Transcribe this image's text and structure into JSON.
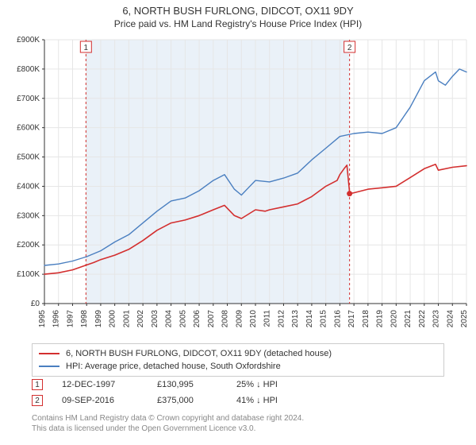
{
  "title": "6, NORTH BUSH FURLONG, DIDCOT, OX11 9DY",
  "subtitle": "Price paid vs. HM Land Registry's House Price Index (HPI)",
  "chart": {
    "type": "line",
    "background_color": "#ffffff",
    "grid_color": "#e6e6e6",
    "shaded_band_color": "#eaf1f8",
    "axis_color": "#333333",
    "x_years": [
      1995,
      1996,
      1997,
      1998,
      1999,
      2000,
      2001,
      2002,
      2003,
      2004,
      2005,
      2006,
      2007,
      2008,
      2009,
      2010,
      2011,
      2012,
      2013,
      2014,
      2015,
      2016,
      2017,
      2018,
      2019,
      2020,
      2021,
      2022,
      2023,
      2024,
      2025
    ],
    "x_label_fontsize": 10,
    "yticks": [
      0,
      100,
      200,
      300,
      400,
      500,
      600,
      700,
      800,
      900
    ],
    "ytick_labels": [
      "£0",
      "£100K",
      "£200K",
      "£300K",
      "£400K",
      "£500K",
      "£600K",
      "£700K",
      "£800K",
      "£900K"
    ],
    "y_label_fontsize": 10,
    "ylim": [
      0,
      900
    ],
    "xlim": [
      1995,
      2025
    ],
    "marker_line_color": "#d32f2f",
    "marker_line_dash": "3,3",
    "marker_box_border": "#d32f2f",
    "marker_box_bg": "#ffffff",
    "marker_box_text": "#333333",
    "series": [
      {
        "name": "property",
        "label": "6, NORTH BUSH FURLONG, DIDCOT, OX11 9DY (detached house)",
        "color": "#d32f2f",
        "line_width": 1.6,
        "points": [
          [
            1995,
            100
          ],
          [
            1996,
            105
          ],
          [
            1997,
            115
          ],
          [
            1997.95,
            131
          ],
          [
            1998.5,
            140
          ],
          [
            1999,
            150
          ],
          [
            2000,
            165
          ],
          [
            2001,
            185
          ],
          [
            2002,
            215
          ],
          [
            2003,
            250
          ],
          [
            2004,
            275
          ],
          [
            2005,
            285
          ],
          [
            2006,
            300
          ],
          [
            2007,
            320
          ],
          [
            2007.8,
            335
          ],
          [
            2008.5,
            300
          ],
          [
            2009,
            290
          ],
          [
            2010,
            320
          ],
          [
            2010.7,
            315
          ],
          [
            2011,
            320
          ],
          [
            2012,
            330
          ],
          [
            2013,
            340
          ],
          [
            2014,
            365
          ],
          [
            2015,
            400
          ],
          [
            2015.8,
            420
          ],
          [
            2016,
            440
          ],
          [
            2016.3,
            460
          ],
          [
            2016.5,
            472
          ],
          [
            2016.7,
            375
          ],
          [
            2017,
            378
          ],
          [
            2018,
            390
          ],
          [
            2019,
            395
          ],
          [
            2020,
            400
          ],
          [
            2021,
            430
          ],
          [
            2022,
            460
          ],
          [
            2022.8,
            475
          ],
          [
            2023,
            455
          ],
          [
            2024,
            465
          ],
          [
            2025,
            470
          ]
        ]
      },
      {
        "name": "hpi",
        "label": "HPI: Average price, detached house, South Oxfordshire",
        "color": "#4a7fc0",
        "line_width": 1.4,
        "points": [
          [
            1995,
            130
          ],
          [
            1996,
            135
          ],
          [
            1997,
            145
          ],
          [
            1998,
            160
          ],
          [
            1999,
            180
          ],
          [
            2000,
            210
          ],
          [
            2001,
            235
          ],
          [
            2002,
            275
          ],
          [
            2003,
            315
          ],
          [
            2004,
            350
          ],
          [
            2005,
            360
          ],
          [
            2006,
            385
          ],
          [
            2007,
            420
          ],
          [
            2007.8,
            440
          ],
          [
            2008.5,
            390
          ],
          [
            2009,
            370
          ],
          [
            2009.5,
            395
          ],
          [
            2010,
            420
          ],
          [
            2011,
            415
          ],
          [
            2012,
            428
          ],
          [
            2013,
            445
          ],
          [
            2014,
            490
          ],
          [
            2015,
            530
          ],
          [
            2016,
            570
          ],
          [
            2017,
            580
          ],
          [
            2018,
            585
          ],
          [
            2019,
            580
          ],
          [
            2020,
            600
          ],
          [
            2021,
            670
          ],
          [
            2022,
            760
          ],
          [
            2022.8,
            790
          ],
          [
            2023,
            760
          ],
          [
            2023.5,
            745
          ],
          [
            2024,
            775
          ],
          [
            2024.5,
            800
          ],
          [
            2025,
            790
          ]
        ]
      }
    ],
    "sale_markers": [
      {
        "id": "1",
        "year": 1997.95,
        "date": "12-DEC-1997",
        "price_label": "£130,995",
        "pct_label": "25% ↓ HPI"
      },
      {
        "id": "2",
        "year": 2016.69,
        "date": "09-SEP-2016",
        "price_label": "£375,000",
        "pct_label": "41% ↓ HPI"
      }
    ]
  },
  "footer": {
    "line1": "Contains HM Land Registry data © Crown copyright and database right 2024.",
    "line2": "This data is licensed under the Open Government Licence v3.0."
  }
}
